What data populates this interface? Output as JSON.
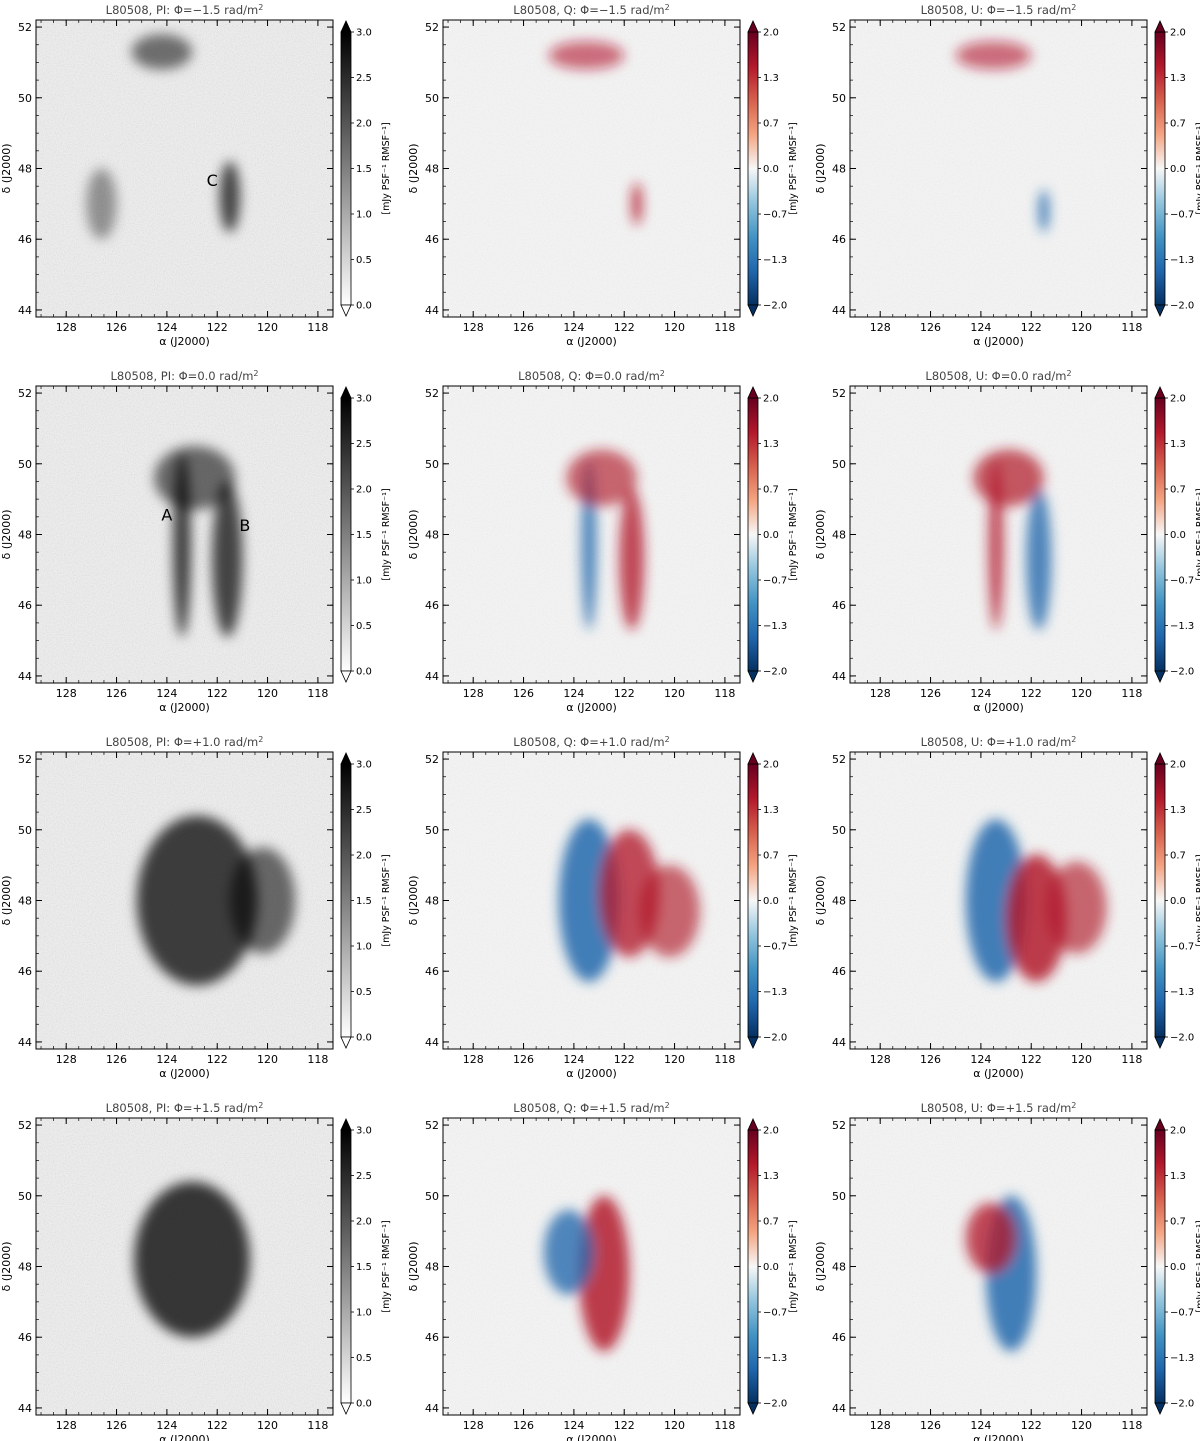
{
  "figure": {
    "panels": [
      {
        "title": "L80508, PI: Φ=−1.5 rad/m",
        "title_sup": "2",
        "kind": "pi",
        "annotations": [
          {
            "label": "C",
            "ra": 122.2,
            "dec": 47.5
          }
        ],
        "blobs": [
          [
            121.5,
            47.2,
            0.4,
            1.0,
            0.85
          ],
          [
            124.2,
            51.3,
            1.2,
            0.5,
            0.55
          ],
          [
            126.6,
            47.0,
            0.6,
            1.0,
            0.3
          ]
        ]
      },
      {
        "title": "L80508, Q: Φ=−1.5 rad/m",
        "title_sup": "2",
        "kind": "pol",
        "annotations": [],
        "blobs": [
          [
            121.5,
            47.0,
            0.2,
            0.6,
            0.9
          ],
          [
            123.5,
            51.2,
            1.5,
            0.4,
            0.5
          ]
        ]
      },
      {
        "title": "L80508, U: Φ=−1.5 rad/m",
        "title_sup": "2",
        "kind": "pol",
        "annotations": [],
        "blobs": [
          [
            121.5,
            46.8,
            0.2,
            0.6,
            -0.9
          ],
          [
            123.5,
            51.2,
            1.5,
            0.4,
            0.5
          ]
        ]
      },
      {
        "title": "L80508, PI: Φ=0.0 rad/m",
        "title_sup": "2",
        "kind": "pi",
        "annotations": [
          {
            "label": "A",
            "ra": 124.0,
            "dec": 48.4
          },
          {
            "label": "B",
            "ra": 120.9,
            "dec": 48.1
          }
        ],
        "blobs": [
          [
            123.4,
            47.7,
            0.35,
            2.6,
            0.9
          ],
          [
            121.6,
            47.3,
            0.6,
            2.2,
            0.85
          ],
          [
            122.9,
            49.6,
            1.6,
            0.9,
            0.6
          ]
        ]
      },
      {
        "title": "L80508, Q: Φ=0.0 rad/m",
        "title_sup": "2",
        "kind": "pol",
        "annotations": [],
        "blobs": [
          [
            123.4,
            47.7,
            0.3,
            2.4,
            -0.8
          ],
          [
            121.7,
            47.3,
            0.5,
            2.0,
            0.8
          ],
          [
            122.9,
            49.6,
            1.4,
            0.8,
            0.6
          ]
        ]
      },
      {
        "title": "L80508, U: Φ=0.0 rad/m",
        "title_sup": "2",
        "kind": "pol",
        "annotations": [],
        "blobs": [
          [
            123.4,
            47.7,
            0.3,
            2.4,
            0.8
          ],
          [
            121.7,
            47.3,
            0.5,
            2.0,
            -0.8
          ],
          [
            122.9,
            49.6,
            1.4,
            0.8,
            0.7
          ]
        ]
      },
      {
        "title": "L80508, PI: Φ=+1.0 rad/m",
        "title_sup": "2",
        "kind": "pi",
        "annotations": [],
        "blobs": [
          [
            122.8,
            48.0,
            2.4,
            2.4,
            0.9
          ],
          [
            120.2,
            48.0,
            1.3,
            1.5,
            0.6
          ]
        ]
      },
      {
        "title": "L80508, Q: Φ=+1.0 rad/m",
        "title_sup": "2",
        "kind": "pol",
        "annotations": [],
        "blobs": [
          [
            123.4,
            48.0,
            1.2,
            2.3,
            -0.9
          ],
          [
            121.8,
            48.2,
            1.2,
            1.8,
            0.8
          ],
          [
            120.2,
            47.7,
            1.2,
            1.3,
            0.6
          ]
        ]
      },
      {
        "title": "L80508, U: Φ=+1.0 rad/m",
        "title_sup": "2",
        "kind": "pol",
        "annotations": [],
        "blobs": [
          [
            123.4,
            48.0,
            1.2,
            2.3,
            -0.9
          ],
          [
            121.8,
            47.5,
            1.2,
            1.8,
            0.9
          ],
          [
            120.2,
            47.8,
            1.2,
            1.3,
            0.6
          ]
        ]
      },
      {
        "title": "L80508, PI: Φ=+1.5 rad/m",
        "title_sup": "2",
        "kind": "pi",
        "annotations": [],
        "blobs": [
          [
            123.0,
            48.2,
            2.3,
            2.2,
            0.95
          ]
        ]
      },
      {
        "title": "L80508, Q: Φ=+1.5 rad/m",
        "title_sup": "2",
        "kind": "pol",
        "annotations": [],
        "blobs": [
          [
            122.8,
            47.8,
            1.0,
            2.2,
            0.9
          ],
          [
            124.2,
            48.4,
            1.0,
            1.2,
            -0.8
          ]
        ]
      },
      {
        "title": "L80508, U: Φ=+1.5 rad/m",
        "title_sup": "2",
        "kind": "pol",
        "annotations": [],
        "blobs": [
          [
            122.8,
            47.8,
            1.0,
            2.2,
            -0.9
          ],
          [
            123.6,
            48.8,
            1.0,
            1.0,
            0.8
          ]
        ]
      }
    ],
    "x_axis": {
      "label": "α (J2000)",
      "ticks": [
        128,
        126,
        124,
        122,
        120,
        118
      ],
      "range": [
        129.2,
        117.4
      ]
    },
    "y_axis": {
      "label": "δ (J2000)",
      "ticks": [
        44,
        46,
        48,
        50,
        52
      ],
      "range": [
        43.8,
        52.2
      ]
    },
    "colorbar_pi": {
      "label": "[mJy PSF⁻¹ RMSF⁻¹]",
      "ticks": [
        "0.0",
        "0.5",
        "1.0",
        "1.5",
        "2.0",
        "2.5",
        "3.0"
      ],
      "range": [
        0,
        3
      ],
      "colors": [
        "#ffffff",
        "#000000"
      ]
    },
    "colorbar_pol": {
      "label": "[mJy PSF⁻¹ RMSF⁻¹]",
      "ticks": [
        "−2.0",
        "−1.3",
        "−0.7",
        "0.0",
        "0.7",
        "1.3",
        "2.0"
      ],
      "range": [
        -2,
        2
      ],
      "colors": [
        "#053061",
        "#2166ac",
        "#4393c3",
        "#92c5de",
        "#f7f7f7",
        "#f4a582",
        "#d6604d",
        "#b2182b",
        "#67001f"
      ]
    }
  }
}
